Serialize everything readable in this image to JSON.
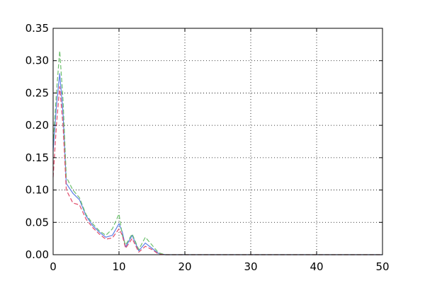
{
  "chart_data": {
    "type": "line",
    "title": "",
    "xlabel": "",
    "ylabel": "",
    "xlim": [
      0,
      50
    ],
    "ylim": [
      0,
      0.35
    ],
    "xticks": [
      0,
      10,
      20,
      30,
      40,
      50
    ],
    "yticks": [
      0.0,
      0.05,
      0.1,
      0.15,
      0.2,
      0.25,
      0.3,
      0.35
    ],
    "xtick_labels": [
      "0",
      "10",
      "20",
      "30",
      "40",
      "50"
    ],
    "ytick_labels": [
      "0.00",
      "0.05",
      "0.10",
      "0.15",
      "0.20",
      "0.25",
      "0.30",
      "0.35"
    ],
    "grid": true,
    "grid_style": "dotted",
    "legend": false,
    "x": [
      0,
      0.5,
      1,
      1.5,
      2,
      3,
      4,
      5,
      6,
      7,
      8,
      9,
      10,
      10.5,
      11,
      12,
      13,
      14,
      15,
      16,
      17,
      18,
      20,
      25,
      30,
      35,
      40,
      45,
      50
    ],
    "series": [
      {
        "color": "#5b7fe6",
        "linestyle": "solid",
        "values": [
          0.16,
          0.23,
          0.28,
          0.22,
          0.11,
          0.095,
          0.085,
          0.06,
          0.045,
          0.035,
          0.027,
          0.03,
          0.048,
          0.035,
          0.012,
          0.03,
          0.006,
          0.018,
          0.01,
          0.002,
          0.0,
          0.0,
          0.0,
          0.0,
          0.0,
          0.0,
          0.0,
          0.0,
          0.0
        ]
      },
      {
        "color": "#6cbf6c",
        "linestyle": "dashed",
        "values": [
          0.17,
          0.25,
          0.315,
          0.24,
          0.12,
          0.1,
          0.088,
          0.062,
          0.048,
          0.037,
          0.03,
          0.04,
          0.063,
          0.03,
          0.015,
          0.032,
          0.008,
          0.027,
          0.015,
          0.003,
          0.0,
          0.0,
          0.0,
          0.0,
          0.0,
          0.0,
          0.0,
          0.0,
          0.0
        ]
      },
      {
        "color": "#e04a6a",
        "linestyle": "dashed",
        "values": [
          0.12,
          0.2,
          0.26,
          0.2,
          0.1,
          0.08,
          0.077,
          0.055,
          0.042,
          0.032,
          0.024,
          0.026,
          0.04,
          0.03,
          0.01,
          0.025,
          0.004,
          0.013,
          0.008,
          0.001,
          0.0,
          0.0,
          0.0,
          0.0,
          0.0,
          0.0,
          0.0,
          0.0,
          0.0
        ]
      }
    ]
  }
}
